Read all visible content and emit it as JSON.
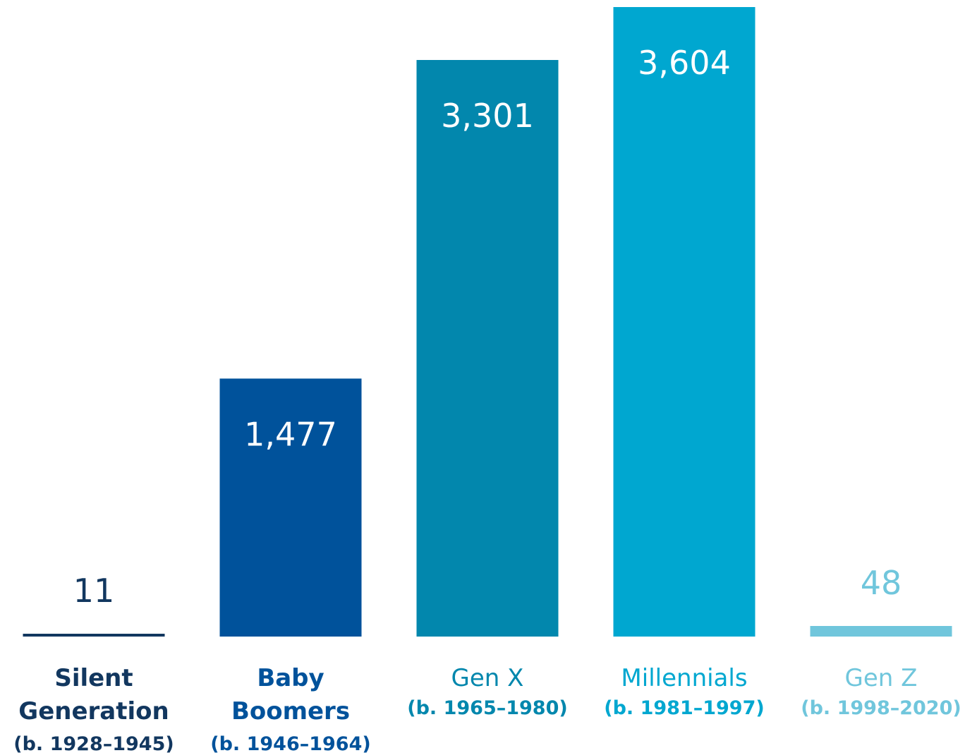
{
  "chart_data": {
    "type": "bar",
    "title": "",
    "xlabel": "",
    "ylabel": "",
    "ylim": [
      0,
      3604
    ],
    "grid": false,
    "legend": "none",
    "categories": [
      {
        "name_lines": [
          "Silent",
          "Generation"
        ],
        "years": "(b. 1928–1945)",
        "bold": true
      },
      {
        "name_lines": [
          "Baby",
          "Boomers"
        ],
        "years": "(b. 1946–1964)",
        "bold": true
      },
      {
        "name_lines": [
          "Gen X"
        ],
        "years": "(b. 1965–1980)",
        "bold": false
      },
      {
        "name_lines": [
          "Millennials"
        ],
        "years": "(b. 1981–1997)",
        "bold": false
      },
      {
        "name_lines": [
          "Gen Z"
        ],
        "years": "(b. 1998–2020)",
        "bold": false
      }
    ],
    "values": [
      11,
      1477,
      3301,
      3604,
      48
    ],
    "value_labels": [
      "11",
      "1,477",
      "3,301",
      "3,604",
      "48"
    ],
    "colors": [
      "#12375f",
      "#00529b",
      "#0287ad",
      "#00a7d0",
      "#70c6dc"
    ]
  }
}
